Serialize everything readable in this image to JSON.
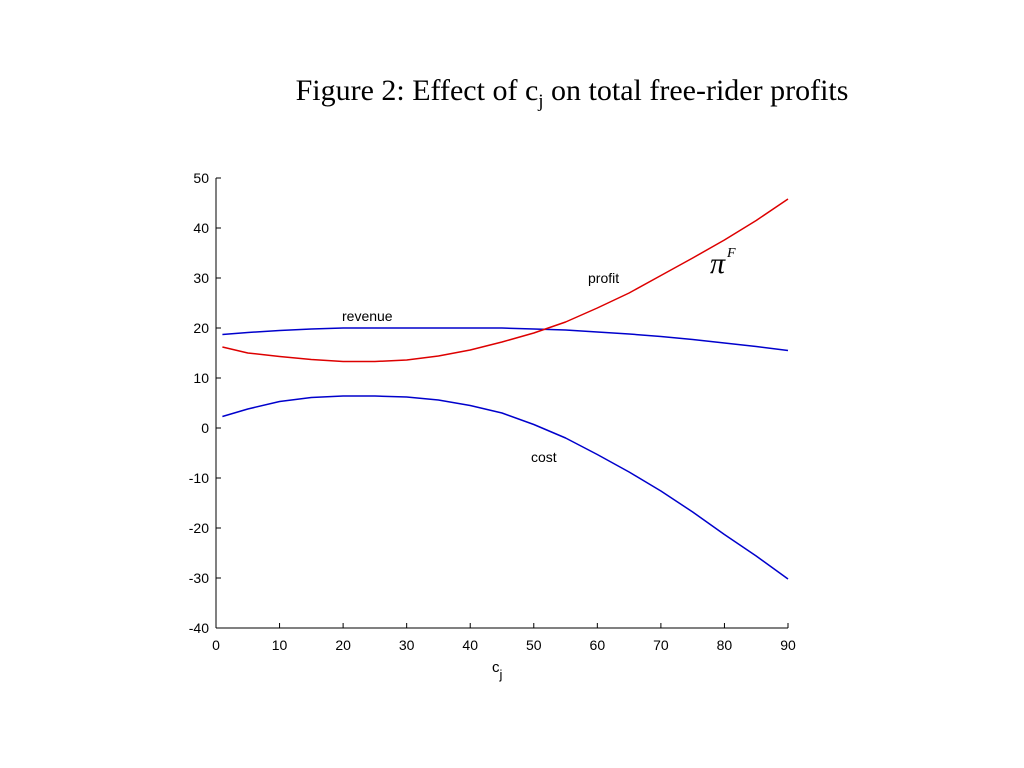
{
  "chart_data": {
    "type": "line",
    "title": {
      "prefix": "Figure 2: Effect of c",
      "subscript": "j",
      "suffix": " on total free-rider profits"
    },
    "xlabel": {
      "base": "c",
      "subscript": "j"
    },
    "ylabel": "",
    "xlim": [
      0,
      90
    ],
    "ylim": [
      -40,
      50
    ],
    "xticks": [
      0,
      10,
      20,
      30,
      40,
      50,
      60,
      70,
      80,
      90
    ],
    "yticks": [
      -40,
      -30,
      -20,
      -10,
      0,
      10,
      20,
      30,
      40,
      50
    ],
    "grid": false,
    "legend": "none",
    "series": [
      {
        "label": "revenue",
        "color": "#0000cc",
        "x": [
          1,
          5,
          10,
          15,
          20,
          25,
          30,
          35,
          40,
          45,
          50,
          55,
          60,
          65,
          70,
          75,
          80,
          85,
          90
        ],
        "y": [
          18.7,
          19.1,
          19.5,
          19.8,
          20.0,
          20.0,
          20.0,
          20.0,
          20.0,
          20.0,
          19.8,
          19.6,
          19.2,
          18.8,
          18.3,
          17.7,
          17.0,
          16.3,
          15.5
        ]
      },
      {
        "label": "profit",
        "color": "#dd0000",
        "x": [
          1,
          5,
          10,
          15,
          20,
          25,
          30,
          35,
          40,
          45,
          50,
          55,
          60,
          65,
          70,
          75,
          80,
          85,
          90
        ],
        "y": [
          16.2,
          15.0,
          14.3,
          13.7,
          13.3,
          13.3,
          13.6,
          14.4,
          15.6,
          17.2,
          19.0,
          21.2,
          24.0,
          27.0,
          30.5,
          34.0,
          37.6,
          41.5,
          45.8
        ]
      },
      {
        "label": "cost",
        "color": "#0000cc",
        "x": [
          1,
          5,
          10,
          15,
          20,
          25,
          30,
          35,
          40,
          45,
          50,
          55,
          60,
          65,
          70,
          75,
          80,
          85,
          90
        ],
        "y": [
          2.3,
          3.8,
          5.3,
          6.1,
          6.4,
          6.4,
          6.2,
          5.6,
          4.5,
          3.0,
          0.7,
          -2.0,
          -5.3,
          -8.8,
          -12.6,
          -16.8,
          -21.3,
          -25.6,
          -30.2
        ]
      }
    ],
    "annotations": {
      "revenue": "revenue",
      "profit": "profit",
      "cost": "cost",
      "pi_symbol": "π",
      "pi_superscript": "F"
    }
  }
}
